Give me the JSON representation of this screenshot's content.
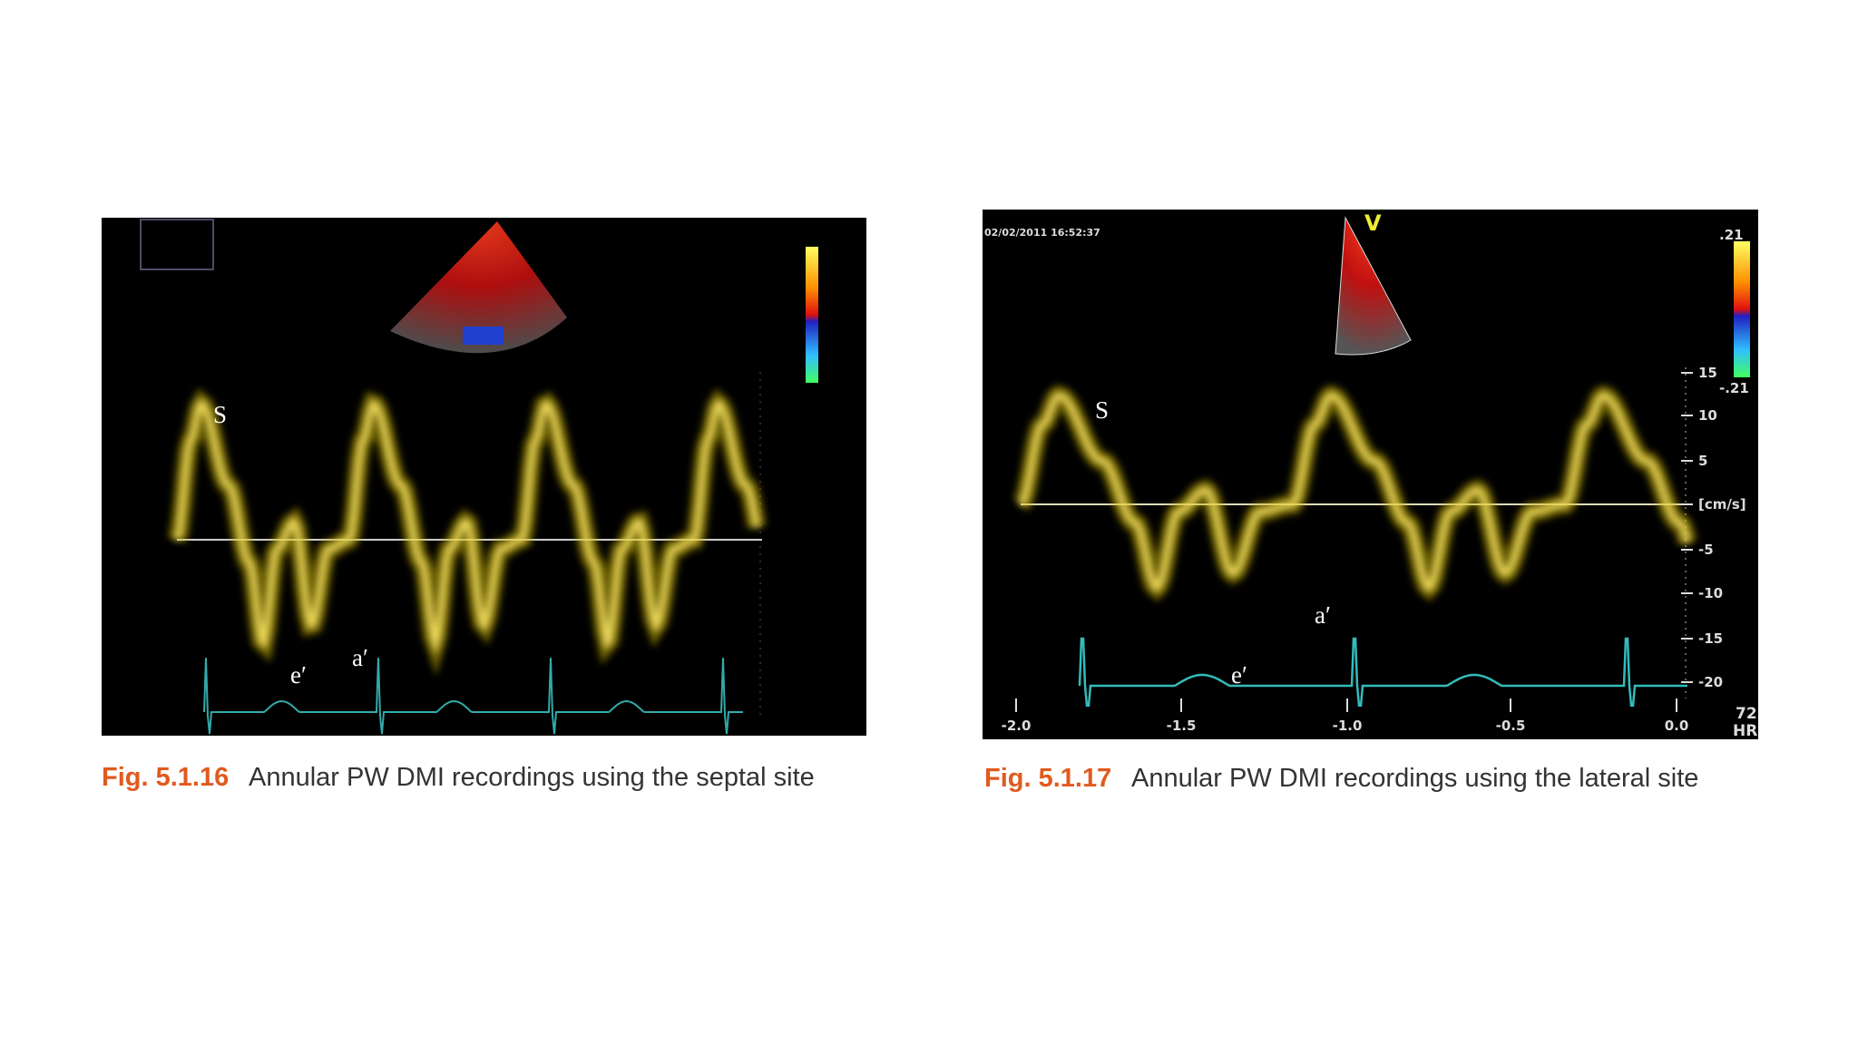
{
  "figures": [
    {
      "caption_label": "Fig. 5.1.16",
      "caption_text": "Annular PW DMI recordings using the septal site",
      "wave_labels": {
        "s": "S",
        "e": "e′",
        "a": "a′"
      }
    },
    {
      "caption_label": "Fig. 5.1.17",
      "caption_text": "Annular PW DMI recordings using the lateral site",
      "wave_labels": {
        "s": "S",
        "e": "e′",
        "a": "a′"
      },
      "timestamp": "02/02/2011 16:52:37",
      "probe_label": "V",
      "colorbar_top": ".21",
      "colorbar_bottom": "-.21",
      "velocity_ticks": [
        "15",
        "10",
        "5",
        "[cm/s]",
        "-5",
        "-10",
        "-15",
        "-20"
      ],
      "time_ticks": [
        "-2.0",
        "-1.5",
        "-1.0",
        "-0.5",
        "0.0"
      ],
      "heart_rate": "72",
      "heart_rate_label": "HR"
    }
  ]
}
